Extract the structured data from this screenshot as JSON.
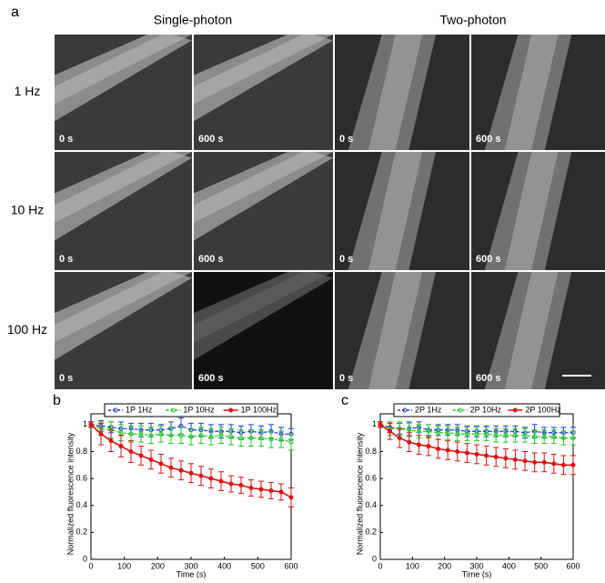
{
  "figure": {
    "label": "a",
    "columns": [
      "Single-photon",
      "Two-photon"
    ],
    "rows": [
      "1 Hz",
      "10 Hz",
      "100 Hz"
    ],
    "time_labels": [
      "0 s",
      "600 s",
      "0 s",
      "600 s"
    ]
  },
  "chart_data": [
    {
      "type": "line",
      "label": "b",
      "xlabel": "Time (s)",
      "ylabel": "Normalized fluorescence intensity",
      "x": [
        0,
        30,
        60,
        90,
        120,
        150,
        180,
        210,
        240,
        270,
        300,
        330,
        360,
        390,
        420,
        450,
        480,
        510,
        540,
        570,
        600
      ],
      "xlim": [
        0,
        600
      ],
      "xticks": [
        0,
        100,
        200,
        300,
        400,
        500,
        600
      ],
      "ylim": [
        0,
        1.08
      ],
      "yticks": [
        0,
        0.2,
        0.4,
        0.6,
        0.8,
        1
      ],
      "series": [
        {
          "name": "1P 1Hz",
          "color": "#1f3fd6",
          "style": "dashed",
          "values": [
            1,
            0.99,
            0.98,
            0.97,
            0.97,
            0.96,
            0.96,
            0.96,
            0.97,
            0.99,
            0.96,
            0.96,
            0.95,
            0.95,
            0.95,
            0.94,
            0.95,
            0.94,
            0.95,
            0.93,
            0.93
          ],
          "errors": [
            0.02,
            0.04,
            0.04,
            0.05,
            0.04,
            0.05,
            0.05,
            0.04,
            0.05,
            0.06,
            0.05,
            0.05,
            0.05,
            0.05,
            0.05,
            0.05,
            0.05,
            0.05,
            0.05,
            0.05,
            0.04
          ]
        },
        {
          "name": "1P 10Hz",
          "color": "#22cc22",
          "style": "dashed",
          "values": [
            1,
            0.97,
            0.96,
            0.94,
            0.93,
            0.93,
            0.92,
            0.93,
            0.92,
            0.92,
            0.91,
            0.92,
            0.91,
            0.92,
            0.91,
            0.9,
            0.9,
            0.9,
            0.89,
            0.89,
            0.87
          ],
          "errors": [
            0.02,
            0.05,
            0.06,
            0.06,
            0.06,
            0.06,
            0.06,
            0.06,
            0.06,
            0.06,
            0.06,
            0.06,
            0.06,
            0.06,
            0.06,
            0.06,
            0.06,
            0.06,
            0.06,
            0.06,
            0.06
          ]
        },
        {
          "name": "1P 100Hz",
          "color": "#e01010",
          "style": "solid",
          "values": [
            1,
            0.93,
            0.88,
            0.84,
            0.8,
            0.77,
            0.74,
            0.71,
            0.68,
            0.66,
            0.64,
            0.62,
            0.6,
            0.58,
            0.56,
            0.55,
            0.53,
            0.52,
            0.51,
            0.5,
            0.46
          ],
          "errors": [
            0.02,
            0.08,
            0.08,
            0.08,
            0.08,
            0.07,
            0.07,
            0.07,
            0.07,
            0.07,
            0.07,
            0.07,
            0.07,
            0.07,
            0.06,
            0.06,
            0.06,
            0.06,
            0.06,
            0.06,
            0.07
          ]
        }
      ]
    },
    {
      "type": "line",
      "label": "c",
      "xlabel": "Time (s)",
      "ylabel": "Normalized fluorescence intensity",
      "x": [
        0,
        30,
        60,
        90,
        120,
        150,
        180,
        210,
        240,
        270,
        300,
        330,
        360,
        390,
        420,
        450,
        480,
        510,
        540,
        570,
        600
      ],
      "xlim": [
        0,
        600
      ],
      "xticks": [
        0,
        100,
        200,
        300,
        400,
        500,
        600
      ],
      "ylim": [
        0,
        1.08
      ],
      "yticks": [
        0,
        0.2,
        0.4,
        0.6,
        0.8,
        1
      ],
      "series": [
        {
          "name": "2P 1Hz",
          "color": "#1f3fd6",
          "style": "dashed",
          "values": [
            1,
            0.98,
            0.97,
            0.97,
            0.98,
            0.96,
            0.96,
            0.96,
            0.96,
            0.95,
            0.95,
            0.95,
            0.95,
            0.95,
            0.95,
            0.94,
            0.95,
            0.94,
            0.94,
            0.94,
            0.94
          ],
          "errors": [
            0.02,
            0.04,
            0.04,
            0.05,
            0.04,
            0.04,
            0.04,
            0.04,
            0.04,
            0.04,
            0.04,
            0.04,
            0.04,
            0.04,
            0.04,
            0.04,
            0.05,
            0.04,
            0.04,
            0.04,
            0.04
          ]
        },
        {
          "name": "2P 10Hz",
          "color": "#22cc22",
          "style": "dashed",
          "values": [
            1,
            0.97,
            0.97,
            0.96,
            0.95,
            0.95,
            0.94,
            0.94,
            0.93,
            0.93,
            0.93,
            0.93,
            0.92,
            0.92,
            0.92,
            0.92,
            0.91,
            0.91,
            0.91,
            0.9,
            0.9
          ],
          "errors": [
            0.02,
            0.05,
            0.05,
            0.05,
            0.05,
            0.05,
            0.05,
            0.05,
            0.05,
            0.05,
            0.05,
            0.05,
            0.05,
            0.05,
            0.05,
            0.05,
            0.05,
            0.05,
            0.05,
            0.05,
            0.05
          ]
        },
        {
          "name": "2P 100Hz",
          "color": "#e01010",
          "style": "solid",
          "values": [
            1,
            0.95,
            0.9,
            0.87,
            0.85,
            0.84,
            0.82,
            0.81,
            0.8,
            0.79,
            0.78,
            0.77,
            0.76,
            0.75,
            0.74,
            0.73,
            0.72,
            0.72,
            0.71,
            0.7,
            0.7
          ],
          "errors": [
            0.02,
            0.06,
            0.07,
            0.07,
            0.07,
            0.07,
            0.07,
            0.07,
            0.07,
            0.07,
            0.07,
            0.07,
            0.07,
            0.07,
            0.07,
            0.07,
            0.07,
            0.07,
            0.07,
            0.07,
            0.07
          ]
        }
      ]
    }
  ]
}
